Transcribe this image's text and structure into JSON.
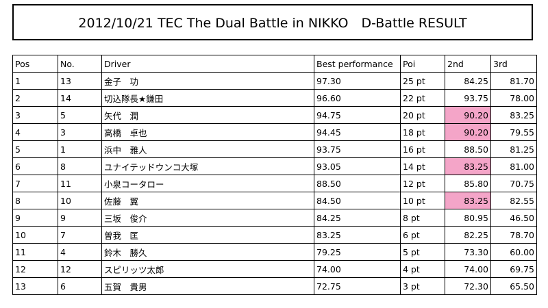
{
  "title": "2012/10/21 TEC The Dual Battle in NIKKO　D-Battle RESULT",
  "highlight_color": "#f4a5c8",
  "headers": {
    "pos": "Pos",
    "no": "No.",
    "driver": "Driver",
    "best": "Best performance",
    "poi": "Poi",
    "second": "2nd",
    "third": "3rd"
  },
  "rows": [
    {
      "pos": "1",
      "no": "13",
      "driver": "金子　功",
      "best": "97.30",
      "poi": "25 pt",
      "second": "84.25",
      "third": "81.70",
      "hl2": false
    },
    {
      "pos": "2",
      "no": "14",
      "driver": "切込隊長★鎌田",
      "best": "96.60",
      "poi": "22 pt",
      "second": "93.75",
      "third": "78.00",
      "hl2": false
    },
    {
      "pos": "3",
      "no": "5",
      "driver": "矢代　潤",
      "best": "94.75",
      "poi": "20 pt",
      "second": "90.20",
      "third": "83.25",
      "hl2": true
    },
    {
      "pos": "4",
      "no": "3",
      "driver": "高橋　卓也",
      "best": "94.45",
      "poi": "18 pt",
      "second": "90.20",
      "third": "79.55",
      "hl2": true
    },
    {
      "pos": "5",
      "no": "1",
      "driver": "浜中　雅人",
      "best": "93.75",
      "poi": "16 pt",
      "second": "88.50",
      "third": "81.25",
      "hl2": false
    },
    {
      "pos": "6",
      "no": "8",
      "driver": "ユナイテッドウンコ大塚",
      "best": "93.05",
      "poi": "14 pt",
      "second": "83.25",
      "third": "81.00",
      "hl2": true
    },
    {
      "pos": "7",
      "no": "11",
      "driver": "小泉コータロー",
      "best": "88.50",
      "poi": "12 pt",
      "second": "85.80",
      "third": "70.75",
      "hl2": false
    },
    {
      "pos": "8",
      "no": "10",
      "driver": "佐藤　翼",
      "best": "84.50",
      "poi": "10 pt",
      "second": "83.25",
      "third": "82.55",
      "hl2": true
    },
    {
      "pos": "9",
      "no": "9",
      "driver": "三坂　俊介",
      "best": "84.25",
      "poi": "8 pt",
      "second": "80.95",
      "third": "46.50",
      "hl2": false
    },
    {
      "pos": "10",
      "no": "7",
      "driver": "曽我　匡",
      "best": "83.25",
      "poi": "6 pt",
      "second": "82.25",
      "third": "78.70",
      "hl2": false
    },
    {
      "pos": "11",
      "no": "4",
      "driver": "鈴木　勝久",
      "best": "79.25",
      "poi": "5 pt",
      "second": "73.30",
      "third": "60.00",
      "hl2": false
    },
    {
      "pos": "12",
      "no": "12",
      "driver": "スピリッツ太郎",
      "best": "74.00",
      "poi": "4 pt",
      "second": "74.00",
      "third": "69.75",
      "hl2": false
    },
    {
      "pos": "13",
      "no": "6",
      "driver": "五賀　貴男",
      "best": "72.75",
      "poi": "3 pt",
      "second": "72.30",
      "third": "65.50",
      "hl2": false
    }
  ]
}
